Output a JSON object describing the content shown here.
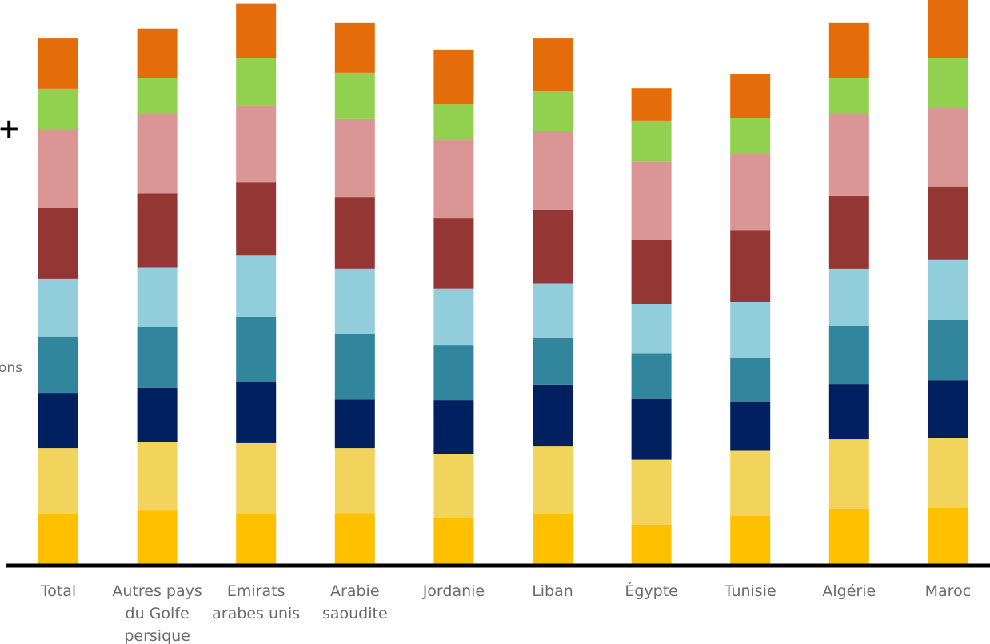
{
  "edge_labels": {
    "top_marker": "+",
    "middle_text": "ons"
  },
  "chart_data": {
    "type": "bar",
    "stacked": true,
    "title": "",
    "xlabel": "",
    "ylabel": "",
    "ylim": [
      0,
      100
    ],
    "grid": false,
    "legend": "none",
    "categories": [
      [
        "Total"
      ],
      [
        "Autres pays",
        "du Golfe",
        "persique"
      ],
      [
        "Emirats",
        "arabes unis"
      ],
      [
        "Arabie",
        "saoudite"
      ],
      [
        "Jordanie"
      ],
      [
        "Liban"
      ],
      [
        "Égypte"
      ],
      [
        "Tunisie"
      ],
      [
        "Algérie"
      ],
      [
        "Maroc"
      ]
    ],
    "colors": [
      "#FFC000",
      "#F2D45C",
      "#002060",
      "#31859C",
      "#92CDDC",
      "#943634",
      "#DA9694",
      "#92D050",
      "#E46C0A"
    ],
    "series": [
      {
        "values": [
          9.0,
          9.7,
          9.1,
          9.2,
          8.3,
          9.0,
          7.1,
          8.8,
          10.0,
          10.2
        ]
      },
      {
        "values": [
          12.0,
          12.4,
          12.8,
          11.8,
          11.7,
          12.3,
          11.8,
          11.7,
          12.6,
          12.6
        ]
      },
      {
        "values": [
          10.0,
          9.8,
          11.0,
          8.8,
          9.7,
          11.2,
          11.0,
          8.8,
          10.0,
          10.5
        ]
      },
      {
        "values": [
          10.2,
          11.0,
          11.9,
          11.9,
          10.0,
          8.5,
          8.3,
          8.0,
          10.5,
          10.9
        ]
      },
      {
        "values": [
          10.4,
          10.8,
          11.1,
          11.8,
          10.2,
          9.8,
          8.9,
          10.2,
          10.4,
          10.9
        ]
      },
      {
        "values": [
          12.9,
          13.5,
          13.2,
          13.0,
          12.7,
          13.3,
          11.6,
          12.9,
          13.2,
          13.2
        ]
      },
      {
        "values": [
          14.2,
          14.3,
          14.0,
          14.1,
          14.3,
          14.3,
          14.3,
          13.8,
          14.8,
          14.3
        ]
      },
      {
        "values": [
          7.4,
          6.5,
          8.5,
          8.4,
          6.4,
          7.2,
          7.3,
          6.6,
          6.5,
          9.1
        ]
      },
      {
        "values": [
          9.1,
          9.0,
          9.9,
          9.0,
          9.9,
          9.6,
          5.9,
          8.0,
          10.0,
          10.5
        ]
      }
    ]
  }
}
